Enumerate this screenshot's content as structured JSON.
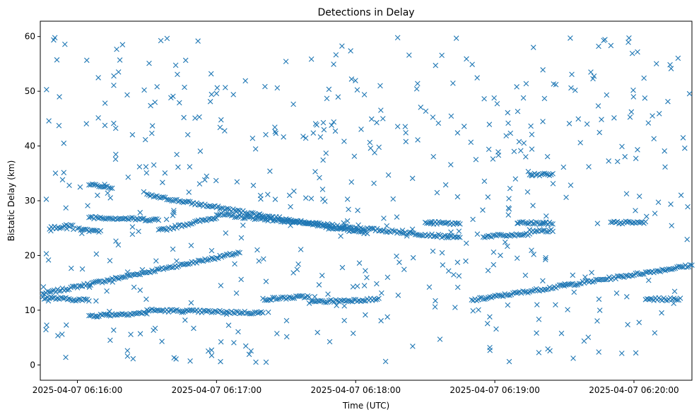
{
  "chart_data": {
    "type": "scatter",
    "title": "Detections in Delay",
    "xlabel": "Time (UTC)",
    "ylabel": "Bistatic Delay (km)",
    "x_unit": "seconds",
    "x_ticks": [
      {
        "value": "2025-04-07 06:16:00",
        "label": "2025-04-07 06:16:00"
      },
      {
        "value": "2025-04-07 06:17:00",
        "label": "2025-04-07 06:17:00"
      },
      {
        "value": "2025-04-07 06:18:00",
        "label": "2025-04-07 06:18:00"
      },
      {
        "value": "2025-04-07 06:19:00",
        "label": "2025-04-07 06:19:00"
      },
      {
        "value": "2025-04-07 06:20:00",
        "label": "2025-04-07 06:20:00"
      }
    ],
    "xlim": [
      "2025-04-07 06:15:44",
      "2025-04-07 06:20:25"
    ],
    "y_ticks": [
      0,
      10,
      20,
      30,
      40,
      50,
      60
    ],
    "ylim": [
      -2.8,
      62.8
    ],
    "marker": "x",
    "color": "#1f77b4",
    "grid": false,
    "tracks": [
      {
        "t_start": "2025-04-07 06:15:45",
        "t_end": "2025-04-07 06:17:10",
        "y_start": 13.0,
        "y_end": 20.5
      },
      {
        "t_start": "2025-04-07 06:16:30",
        "t_end": "2025-04-07 06:18:05",
        "y_start": 31.0,
        "y_end": 24.0
      },
      {
        "t_start": "2025-04-07 06:16:35",
        "t_end": "2025-04-07 06:17:00",
        "y_start": 24.5,
        "y_end": 27.0
      },
      {
        "t_start": "2025-04-07 06:17:00",
        "t_end": "2025-04-07 06:18:45",
        "y_start": 27.5,
        "y_end": 23.2
      },
      {
        "t_start": "2025-04-07 06:18:50",
        "t_end": "2025-04-07 06:20:25",
        "y_start": 11.8,
        "y_end": 18.2
      },
      {
        "t_start": "2025-04-07 06:15:45",
        "t_end": "2025-04-07 06:16:05",
        "y_start": 12.3,
        "y_end": 11.8
      },
      {
        "t_start": "2025-04-07 06:16:05",
        "t_end": "2025-04-07 06:16:35",
        "y_start": 27.0,
        "y_end": 26.5
      },
      {
        "t_start": "2025-04-07 06:16:05",
        "t_end": "2025-04-07 06:16:30",
        "y_start": 9.0,
        "y_end": 9.5
      },
      {
        "t_start": "2025-04-07 06:16:30",
        "t_end": "2025-04-07 06:17:20",
        "y_start": 10.0,
        "y_end": 9.5
      },
      {
        "t_start": "2025-04-07 06:17:20",
        "t_end": "2025-04-07 06:17:40",
        "y_start": 12.0,
        "y_end": 12.5
      },
      {
        "t_start": "2025-04-07 06:17:40",
        "t_end": "2025-04-07 06:18:10",
        "y_start": 11.5,
        "y_end": 12.0
      },
      {
        "t_start": "2025-04-07 06:18:30",
        "t_end": "2025-04-07 06:18:45",
        "y_start": 26.0,
        "y_end": 25.8
      },
      {
        "t_start": "2025-04-07 06:18:55",
        "t_end": "2025-04-07 06:19:15",
        "y_start": 23.5,
        "y_end": 23.8
      },
      {
        "t_start": "2025-04-07 06:19:10",
        "t_end": "2025-04-07 06:19:25",
        "y_start": 26.0,
        "y_end": 25.8
      },
      {
        "t_start": "2025-04-07 06:19:15",
        "t_end": "2025-04-07 06:19:25",
        "y_start": 34.8,
        "y_end": 34.8
      },
      {
        "t_start": "2025-04-07 06:19:15",
        "t_end": "2025-04-07 06:19:25",
        "y_start": 24.5,
        "y_end": 24.5
      },
      {
        "t_start": "2025-04-07 06:16:05",
        "t_end": "2025-04-07 06:16:15",
        "y_start": 33.0,
        "y_end": 32.5
      },
      {
        "t_start": "2025-04-07 06:15:48",
        "t_end": "2025-04-07 06:15:58",
        "y_start": 25.0,
        "y_end": 25.5
      },
      {
        "t_start": "2025-04-07 06:16:00",
        "t_end": "2025-04-07 06:16:10",
        "y_start": 24.8,
        "y_end": 24.3
      },
      {
        "t_start": "2025-04-07 06:19:50",
        "t_end": "2025-04-07 06:20:05",
        "y_start": 26.0,
        "y_end": 26.0
      },
      {
        "t_start": "2025-04-07 06:20:05",
        "t_end": "2025-04-07 06:20:20",
        "y_start": 12.0,
        "y_end": 12.0
      }
    ],
    "noise": {
      "count": 520,
      "y_range": [
        0.5,
        59.8
      ],
      "seed": 7
    }
  }
}
